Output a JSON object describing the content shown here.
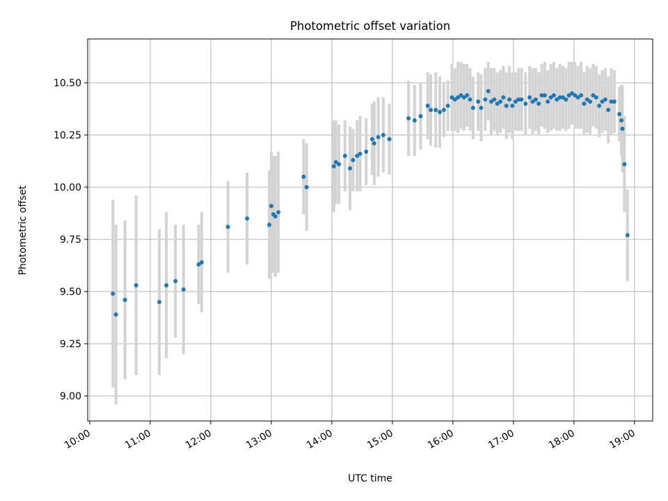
{
  "chart_data": {
    "type": "scatter",
    "title": "Photometric offset variation",
    "xlabel": "UTC time",
    "ylabel": "Photometric offset",
    "x_ticks": [
      "10:00",
      "11:00",
      "12:00",
      "13:00",
      "14:00",
      "15:00",
      "16:00",
      "17:00",
      "18:00",
      "19:00"
    ],
    "y_ticks": [
      "9.00",
      "9.25",
      "9.50",
      "9.75",
      "10.00",
      "10.25",
      "10.50"
    ],
    "xlim": [
      "09:58",
      "19:18"
    ],
    "ylim": [
      8.88,
      10.71
    ],
    "grid": true,
    "colors": {
      "points": "#1f77b4",
      "errorbars": "#d3d3d3",
      "grid": "#b0b0b0"
    },
    "series": [
      {
        "points": [
          {
            "x": "10:23",
            "y": 9.49,
            "err": 0.45
          },
          {
            "x": "10:26",
            "y": 9.39,
            "err": 0.43
          },
          {
            "x": "10:35",
            "y": 9.46,
            "err": 0.38
          },
          {
            "x": "10:46",
            "y": 9.53,
            "err": 0.43
          },
          {
            "x": "11:09",
            "y": 9.45,
            "err": 0.35
          },
          {
            "x": "11:16",
            "y": 9.53,
            "err": 0.35
          },
          {
            "x": "11:25",
            "y": 9.55,
            "err": 0.27
          },
          {
            "x": "11:33",
            "y": 9.51,
            "err": 0.31
          },
          {
            "x": "11:48",
            "y": 9.63,
            "err": 0.19
          },
          {
            "x": "11:51",
            "y": 9.64,
            "err": 0.24
          },
          {
            "x": "12:17",
            "y": 9.81,
            "err": 0.22
          },
          {
            "x": "12:36",
            "y": 9.85,
            "err": 0.22
          },
          {
            "x": "12:58",
            "y": 9.82,
            "err": 0.26
          },
          {
            "x": "13:00",
            "y": 9.91,
            "err": 0.26
          },
          {
            "x": "13:02",
            "y": 9.87,
            "err": 0.28
          },
          {
            "x": "13:04",
            "y": 9.86,
            "err": 0.29
          },
          {
            "x": "13:07",
            "y": 9.88,
            "err": 0.29
          },
          {
            "x": "13:32",
            "y": 10.05,
            "err": 0.18
          },
          {
            "x": "13:35",
            "y": 10.0,
            "err": 0.21
          },
          {
            "x": "14:02",
            "y": 10.1,
            "err": 0.22
          },
          {
            "x": "14:04",
            "y": 10.12,
            "err": 0.2
          },
          {
            "x": "14:07",
            "y": 10.11,
            "err": 0.19
          },
          {
            "x": "14:13",
            "y": 10.15,
            "err": 0.17
          },
          {
            "x": "14:18",
            "y": 10.09,
            "err": 0.2
          },
          {
            "x": "14:21",
            "y": 10.13,
            "err": 0.15
          },
          {
            "x": "14:25",
            "y": 10.15,
            "err": 0.17
          },
          {
            "x": "14:28",
            "y": 10.16,
            "err": 0.18
          },
          {
            "x": "14:34",
            "y": 10.17,
            "err": 0.16
          },
          {
            "x": "14:40",
            "y": 10.23,
            "err": 0.17
          },
          {
            "x": "14:42",
            "y": 10.21,
            "err": 0.2
          },
          {
            "x": "14:46",
            "y": 10.24,
            "err": 0.19
          },
          {
            "x": "14:51",
            "y": 10.25,
            "err": 0.18
          },
          {
            "x": "14:57",
            "y": 10.23,
            "err": 0.17
          },
          {
            "x": "15:16",
            "y": 10.33,
            "err": 0.18
          },
          {
            "x": "15:22",
            "y": 10.32,
            "err": 0.17
          },
          {
            "x": "15:28",
            "y": 10.34,
            "err": 0.16
          },
          {
            "x": "15:35",
            "y": 10.39,
            "err": 0.16
          },
          {
            "x": "15:38",
            "y": 10.37,
            "err": 0.17
          },
          {
            "x": "15:43",
            "y": 10.37,
            "err": 0.18
          },
          {
            "x": "15:47",
            "y": 10.36,
            "err": 0.17
          },
          {
            "x": "15:51",
            "y": 10.37,
            "err": 0.13
          },
          {
            "x": "15:55",
            "y": 10.39,
            "err": 0.12
          },
          {
            "x": "15:59",
            "y": 10.43,
            "err": 0.16
          },
          {
            "x": "16:02",
            "y": 10.42,
            "err": 0.15
          },
          {
            "x": "16:05",
            "y": 10.43,
            "err": 0.17
          },
          {
            "x": "16:08",
            "y": 10.44,
            "err": 0.16
          },
          {
            "x": "16:11",
            "y": 10.43,
            "err": 0.16
          },
          {
            "x": "16:14",
            "y": 10.44,
            "err": 0.15
          },
          {
            "x": "16:17",
            "y": 10.42,
            "err": 0.15
          },
          {
            "x": "16:20",
            "y": 10.38,
            "err": 0.15
          },
          {
            "x": "16:25",
            "y": 10.41,
            "err": 0.14
          },
          {
            "x": "16:28",
            "y": 10.38,
            "err": 0.16
          },
          {
            "x": "16:32",
            "y": 10.42,
            "err": 0.15
          },
          {
            "x": "16:35",
            "y": 10.46,
            "err": 0.14
          },
          {
            "x": "16:38",
            "y": 10.41,
            "err": 0.16
          },
          {
            "x": "16:41",
            "y": 10.42,
            "err": 0.15
          },
          {
            "x": "16:44",
            "y": 10.4,
            "err": 0.15
          },
          {
            "x": "16:47",
            "y": 10.41,
            "err": 0.15
          },
          {
            "x": "16:50",
            "y": 10.43,
            "err": 0.15
          },
          {
            "x": "16:53",
            "y": 10.39,
            "err": 0.16
          },
          {
            "x": "16:56",
            "y": 10.42,
            "err": 0.16
          },
          {
            "x": "16:59",
            "y": 10.39,
            "err": 0.16
          },
          {
            "x": "17:02",
            "y": 10.41,
            "err": 0.14
          },
          {
            "x": "17:05",
            "y": 10.42,
            "err": 0.15
          },
          {
            "x": "17:08",
            "y": 10.42,
            "err": 0.15
          },
          {
            "x": "17:12",
            "y": 10.4,
            "err": 0.15
          },
          {
            "x": "17:16",
            "y": 10.43,
            "err": 0.15
          },
          {
            "x": "17:19",
            "y": 10.41,
            "err": 0.16
          },
          {
            "x": "17:22",
            "y": 10.42,
            "err": 0.15
          },
          {
            "x": "17:25",
            "y": 10.4,
            "err": 0.15
          },
          {
            "x": "17:28",
            "y": 10.44,
            "err": 0.15
          },
          {
            "x": "17:31",
            "y": 10.44,
            "err": 0.16
          },
          {
            "x": "17:34",
            "y": 10.41,
            "err": 0.15
          },
          {
            "x": "17:37",
            "y": 10.43,
            "err": 0.16
          },
          {
            "x": "17:40",
            "y": 10.44,
            "err": 0.16
          },
          {
            "x": "17:43",
            "y": 10.42,
            "err": 0.15
          },
          {
            "x": "17:46",
            "y": 10.43,
            "err": 0.16
          },
          {
            "x": "17:49",
            "y": 10.43,
            "err": 0.15
          },
          {
            "x": "17:52",
            "y": 10.42,
            "err": 0.15
          },
          {
            "x": "17:55",
            "y": 10.44,
            "err": 0.16
          },
          {
            "x": "17:58",
            "y": 10.45,
            "err": 0.15
          },
          {
            "x": "18:01",
            "y": 10.44,
            "err": 0.16
          },
          {
            "x": "18:04",
            "y": 10.43,
            "err": 0.15
          },
          {
            "x": "18:07",
            "y": 10.44,
            "err": 0.16
          },
          {
            "x": "18:10",
            "y": 10.4,
            "err": 0.15
          },
          {
            "x": "18:13",
            "y": 10.42,
            "err": 0.16
          },
          {
            "x": "18:16",
            "y": 10.41,
            "err": 0.16
          },
          {
            "x": "18:19",
            "y": 10.44,
            "err": 0.15
          },
          {
            "x": "18:22",
            "y": 10.43,
            "err": 0.15
          },
          {
            "x": "18:25",
            "y": 10.39,
            "err": 0.15
          },
          {
            "x": "18:28",
            "y": 10.41,
            "err": 0.15
          },
          {
            "x": "18:31",
            "y": 10.42,
            "err": 0.15
          },
          {
            "x": "18:34",
            "y": 10.37,
            "err": 0.16
          },
          {
            "x": "18:37",
            "y": 10.41,
            "err": 0.16
          },
          {
            "x": "18:40",
            "y": 10.41,
            "err": 0.15
          },
          {
            "x": "18:45",
            "y": 10.35,
            "err": 0.13
          },
          {
            "x": "18:47",
            "y": 10.32,
            "err": 0.17
          },
          {
            "x": "18:48",
            "y": 10.28,
            "err": 0.21
          },
          {
            "x": "18:50",
            "y": 10.11,
            "err": 0.23
          },
          {
            "x": "18:53",
            "y": 9.77,
            "err": 0.22
          }
        ]
      }
    ]
  }
}
